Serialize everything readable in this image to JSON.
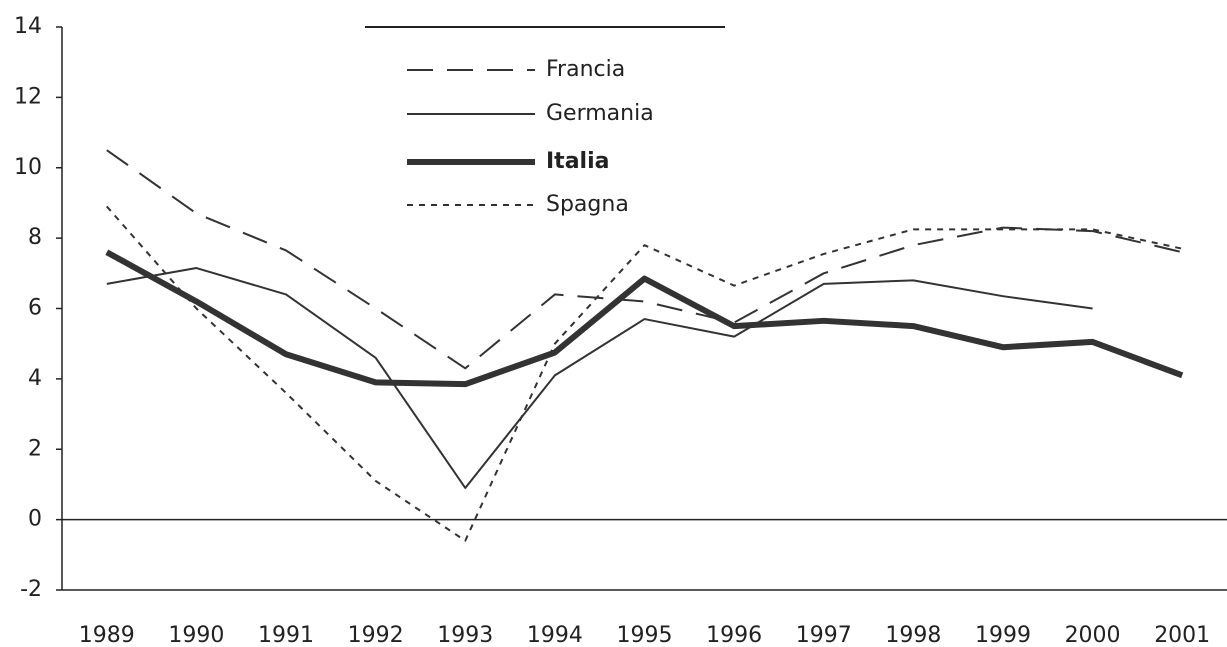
{
  "chart_data": {
    "type": "line",
    "categories": [
      "1989",
      "1990",
      "1991",
      "1992",
      "1993",
      "1994",
      "1995",
      "1996",
      "1997",
      "1998",
      "1999",
      "2000",
      "2001"
    ],
    "series": [
      {
        "name": "Francia",
        "color": "#333333",
        "style": "dashed",
        "width": 2,
        "values": [
          10.5,
          8.7,
          7.65,
          6.0,
          4.3,
          6.4,
          6.2,
          5.6,
          7.0,
          7.8,
          8.3,
          8.2,
          7.6
        ]
      },
      {
        "name": "Germania",
        "color": "#333333",
        "style": "solid",
        "width": 2,
        "values": [
          6.7,
          7.15,
          6.4,
          4.6,
          0.9,
          4.1,
          5.7,
          5.2,
          6.7,
          6.8,
          6.35,
          6.0,
          null
        ]
      },
      {
        "name": "Italia",
        "color": "#333333",
        "style": "solid",
        "width": 6,
        "values": [
          7.6,
          6.2,
          4.7,
          3.9,
          3.85,
          4.75,
          6.85,
          5.5,
          5.65,
          5.5,
          4.9,
          5.05,
          4.1
        ]
      },
      {
        "name": "Spagna",
        "color": "#333333",
        "style": "dotted",
        "width": 2,
        "values": [
          8.9,
          6.0,
          3.6,
          1.1,
          -0.6,
          5.0,
          7.8,
          6.65,
          7.55,
          8.25,
          8.25,
          8.25,
          7.7
        ]
      }
    ],
    "ylim": [
      -2,
      14
    ],
    "yticks": [
      -2,
      0,
      2,
      4,
      6,
      8,
      10,
      12,
      14
    ],
    "legend": "top"
  }
}
